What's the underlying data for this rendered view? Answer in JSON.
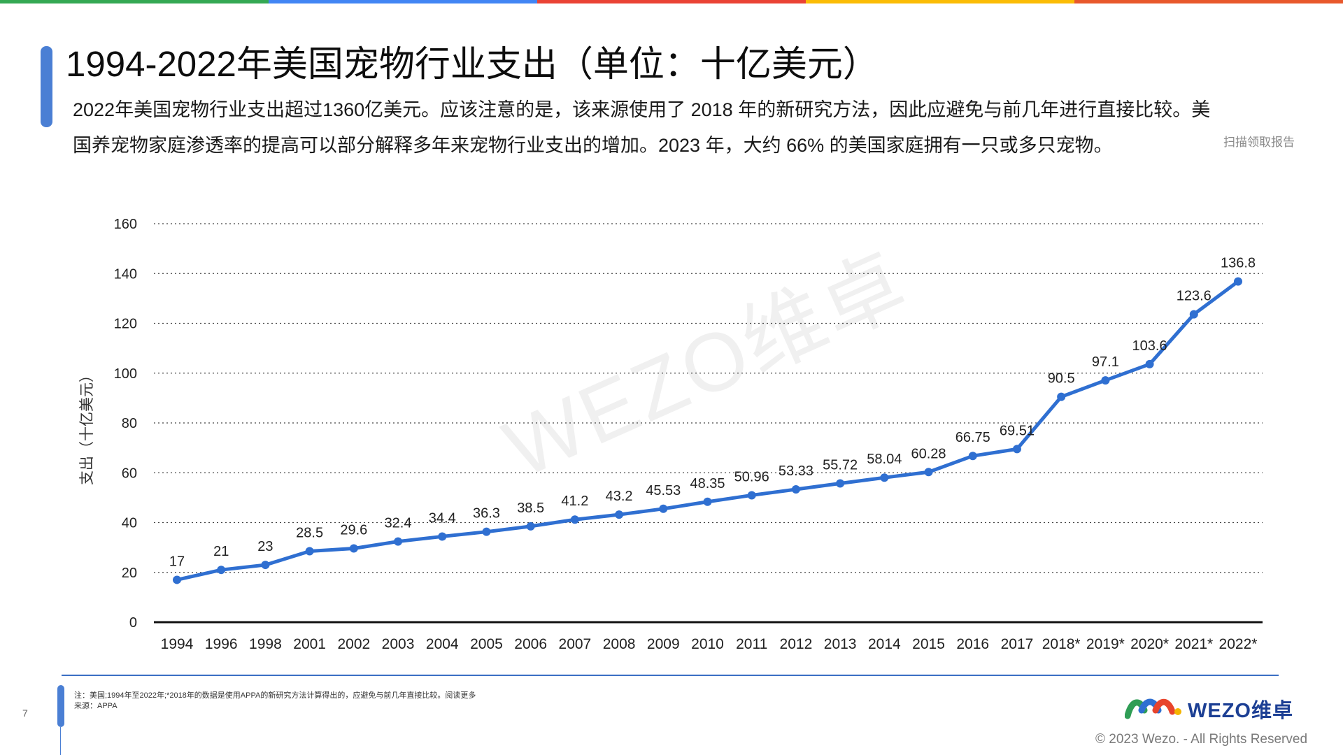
{
  "page": {
    "title": "1994-2022年美国宠物行业支出（单位：十亿美元）",
    "description": "2022年美国宠物行业支出超过1360亿美元。应该注意的是，该来源使用了 2018 年的新研究方法，因此应避免与前几年进行直接比较。美国养宠物家庭渗透率的提高可以部分解释多年来宠物行业支出的增加。2023 年，大约 66% 的美国家庭拥有一只或多只宠物。",
    "scan_note": "扫描领取报告",
    "watermark": "WEZO维卓",
    "page_number": "7",
    "footnote_line1": "注：美国;1994年至2022年;*2018年的数据是使用APPA的新研究方法计算得出的，应避免与前几年直接比较。阅读更多",
    "footnote_line2": "来源：APPA",
    "logo_text": "WEZO维卓",
    "copyright": "© 2023 Wezo. - All Rights Reserved"
  },
  "colors": {
    "line": "#2f6fd1",
    "accent": "#4a7fd4",
    "topbar": [
      "#34a853",
      "#4285f4",
      "#ea4335",
      "#fbbc05",
      "#e8582c"
    ]
  },
  "chart_data": {
    "type": "line",
    "title": "",
    "xlabel": "",
    "ylabel": "支出（十亿美元）",
    "ylim": [
      0,
      160
    ],
    "yticks": [
      0,
      20,
      40,
      60,
      80,
      100,
      120,
      140,
      160
    ],
    "grid": true,
    "categories": [
      "1994",
      "1996",
      "1998",
      "2001",
      "2002",
      "2003",
      "2004",
      "2005",
      "2006",
      "2007",
      "2008",
      "2009",
      "2010",
      "2011",
      "2012",
      "2013",
      "2014",
      "2015",
      "2016",
      "2017",
      "2018*",
      "2019*",
      "2020*",
      "2021*",
      "2022*"
    ],
    "values": [
      17,
      21,
      23,
      28.5,
      29.6,
      32.4,
      34.4,
      36.3,
      38.5,
      41.2,
      43.2,
      45.53,
      48.35,
      50.96,
      53.33,
      55.72,
      58.04,
      60.28,
      66.75,
      69.51,
      90.5,
      97.1,
      103.6,
      123.6,
      136.8
    ],
    "data_labels": [
      "17",
      "21",
      "23",
      "28.5",
      "29.6",
      "32.4",
      "34.4",
      "36.3",
      "38.5",
      "41.2",
      "43.2",
      "45.53",
      "48.35",
      "50.96",
      "53.33",
      "55.72",
      "58.04",
      "60.28",
      "66.75",
      "69.51",
      "90.5",
      "97.1",
      "103.6",
      "123.6",
      "136.8"
    ]
  }
}
